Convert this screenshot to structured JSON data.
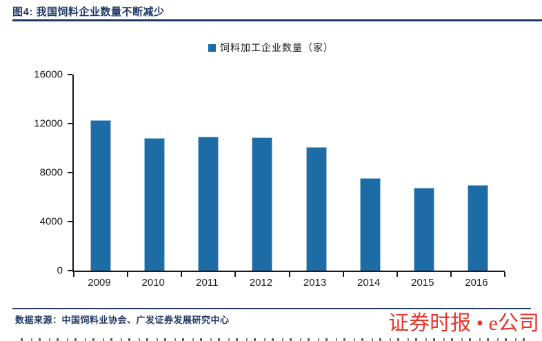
{
  "header": {
    "title": "图4: 我国饲料企业数量不断减少"
  },
  "chart_data": {
    "type": "bar",
    "title": "图4: 我国饲料企业数量不断减少",
    "legend": "饲料加工企业数量（家）",
    "categories": [
      "2009",
      "2010",
      "2011",
      "2012",
      "2013",
      "2014",
      "2015",
      "2016"
    ],
    "values": [
      12290,
      10840,
      10920,
      10860,
      10110,
      7560,
      6770,
      7010
    ],
    "xlabel": "",
    "ylabel": "",
    "ylim": [
      0,
      16000
    ],
    "yticks": [
      0,
      4000,
      8000,
      12000,
      16000
    ],
    "grid": false,
    "legend_position": "top-center",
    "bar_color": "#1D6CA5"
  },
  "footer": {
    "source": "数据来源：中国饲料业协会、广发证券发展研究中心",
    "watermark": "证券时报 • e公司"
  },
  "colors": {
    "accent_navy": "#1F3864",
    "bar_blue": "#1D6CA5",
    "axis_black": "#1a1a1a",
    "watermark_red": "#E7382D"
  }
}
